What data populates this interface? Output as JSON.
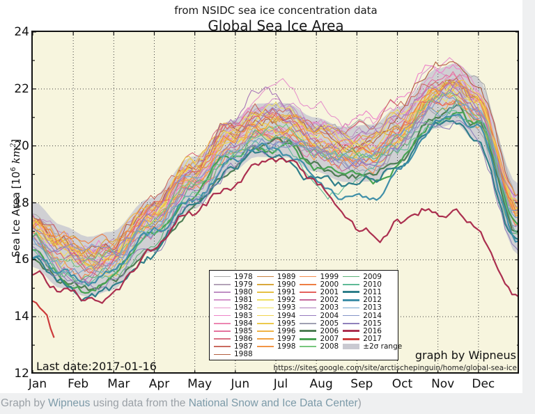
{
  "page": {
    "caption_parts": {
      "p1": "Graph by ",
      "link1": "Wipneus",
      "p2": " using data from the ",
      "link2": "National Snow and Ice Data Center",
      "p3": ")"
    }
  },
  "chart_data": {
    "type": "line",
    "title": "Global Sea Ice Area",
    "subtitle": "from NSIDC sea ice concentration data",
    "ylabel_parts": {
      "pre": "Sea Ice Area [10",
      "sup1": "6",
      "mid": " km",
      "sup2": "2",
      "post": "]"
    },
    "ylim": [
      12,
      24
    ],
    "yticks": [
      24,
      22,
      20,
      18,
      16,
      14,
      12
    ],
    "xticks": [
      "Jan",
      "Feb",
      "Mar",
      "Apr",
      "May",
      "Jun",
      "Jul",
      "Aug",
      "Sep",
      "Oct",
      "Nov",
      "Dec"
    ],
    "grid": "dotted",
    "plot_bg": "#f7f5de",
    "annotations": {
      "last_date": "Last date:2017-01-16",
      "credit": "graph by Wipneus",
      "url": "https://sites.google.com/site/arctischepinguin/home/global-sea-ice"
    },
    "legend": {
      "position": "lower-center",
      "columns": 4,
      "sigma_label": "±2σ range",
      "sigma_color": "#c9c9d1"
    },
    "climatology": [
      [
        0,
        16.9
      ],
      [
        0.06,
        16.1
      ],
      [
        0.115,
        15.75
      ],
      [
        0.16,
        15.95
      ],
      [
        0.24,
        17.2
      ],
      [
        0.33,
        18.7
      ],
      [
        0.41,
        20.0
      ],
      [
        0.46,
        20.55
      ],
      [
        0.52,
        20.55
      ],
      [
        0.58,
        20.05
      ],
      [
        0.64,
        19.7
      ],
      [
        0.7,
        19.75
      ],
      [
        0.75,
        20.35
      ],
      [
        0.83,
        21.65
      ],
      [
        0.87,
        21.85
      ],
      [
        0.91,
        21.3
      ],
      [
        1,
        17.4
      ]
    ],
    "band_halfwidth": [
      [
        0,
        1.15
      ],
      [
        0.13,
        1.05
      ],
      [
        0.25,
        0.95
      ],
      [
        0.4,
        0.9
      ],
      [
        0.5,
        0.95
      ],
      [
        0.6,
        0.95
      ],
      [
        0.7,
        1.0
      ],
      [
        0.78,
        1.0
      ],
      [
        0.85,
        1.05
      ],
      [
        0.93,
        1.15
      ],
      [
        1,
        1.25
      ]
    ],
    "series": [
      {
        "year": "1978",
        "color": "#a9a9a9",
        "w": 1.1,
        "a": 0.55
      },
      {
        "year": "1979",
        "color": "#b3a2b8",
        "w": 1.1,
        "a": 0.5
      },
      {
        "year": "1980",
        "color": "#bf8fc4",
        "w": 1.1,
        "a": 0.6
      },
      {
        "year": "1981",
        "color": "#d495cc",
        "w": 1.1,
        "a": 0.3
      },
      {
        "year": "1982",
        "color": "#e794cb",
        "w": 1.1,
        "a": 0.7
      },
      {
        "year": "1983",
        "color": "#ee82c8",
        "w": 1.1,
        "p": [
          [
            0,
            0.4
          ],
          [
            0.3,
            0.3
          ],
          [
            0.55,
            0.7
          ],
          [
            0.65,
            1.0
          ],
          [
            0.75,
            0.8
          ],
          [
            1,
            0.4
          ]
        ]
      },
      {
        "year": "1984",
        "color": "#ec86b2",
        "w": 1.1,
        "a": 0.25
      },
      {
        "year": "1985",
        "color": "#e4729e",
        "w": 1.1,
        "a": 0.3
      },
      {
        "year": "1986",
        "color": "#d96f82",
        "w": 1.1,
        "a": 0.45
      },
      {
        "year": "1987",
        "color": "#c96a5f",
        "w": 1.1,
        "a": 0.5
      },
      {
        "year": "1988",
        "color": "#b35f3f",
        "w": 1.1,
        "p": [
          [
            0,
            0.6
          ],
          [
            0.4,
            0.5
          ],
          [
            0.7,
            0.6
          ],
          [
            0.8,
            1.0
          ],
          [
            0.85,
            1.15
          ],
          [
            0.9,
            1.0
          ],
          [
            1,
            0.7
          ]
        ]
      },
      {
        "year": "1989",
        "color": "#c67f3e",
        "w": 1.1,
        "a": 0.35
      },
      {
        "year": "1990",
        "color": "#d9a83c",
        "w": 1.1,
        "a": 0.2
      },
      {
        "year": "1991",
        "color": "#e5c044",
        "w": 1.1,
        "a": 0.3
      },
      {
        "year": "1992",
        "color": "#efe061",
        "w": 1.1,
        "a": 0.45
      },
      {
        "year": "1993",
        "color": "#f2e355",
        "w": 1.1,
        "a": 0.25
      },
      {
        "year": "1994",
        "color": "#f0d44e",
        "w": 1.1,
        "a": 0.35
      },
      {
        "year": "1995",
        "color": "#ecc94d",
        "w": 1.1,
        "a": 0.05
      },
      {
        "year": "1996",
        "color": "#f0b345",
        "w": 1.1,
        "a": 0.3
      },
      {
        "year": "1997",
        "color": "#f2a13f",
        "w": 1.1,
        "a": 0.1
      },
      {
        "year": "1998",
        "color": "#f29546",
        "w": 1.1,
        "a": 0.25
      },
      {
        "year": "1999",
        "color": "#f28a4b",
        "w": 1.1,
        "a": 0.05
      },
      {
        "year": "2000",
        "color": "#ee7e43",
        "w": 1.1,
        "a": 0.15
      },
      {
        "year": "2001",
        "color": "#e4615c",
        "w": 1.1,
        "a": 0.1
      },
      {
        "year": "2002",
        "color": "#c4679b",
        "w": 1.1,
        "a": -0.05
      },
      {
        "year": "2003",
        "color": "#a877b8",
        "w": 1.1,
        "p": [
          [
            0,
            0.1
          ],
          [
            0.42,
            0.6
          ],
          [
            0.47,
            1.2
          ],
          [
            0.55,
            0.4
          ],
          [
            0.7,
            0.3
          ],
          [
            1,
            0.1
          ]
        ]
      },
      {
        "year": "2004",
        "color": "#9579bd",
        "w": 1.1,
        "a": 0.05
      },
      {
        "year": "2005",
        "color": "#9fa0b2",
        "w": 1.1,
        "a": -0.25
      },
      {
        "year": "2006",
        "color": "#4e7e54",
        "w": 2.2,
        "a": -0.7
      },
      {
        "year": "2007",
        "color": "#47a352",
        "w": 2.2,
        "p": [
          [
            0,
            -0.5
          ],
          [
            0.4,
            -0.5
          ],
          [
            0.62,
            -0.9
          ],
          [
            0.7,
            -1.1
          ],
          [
            0.8,
            -0.7
          ],
          [
            1,
            -0.5
          ]
        ]
      },
      {
        "year": "2008",
        "color": "#77c77d",
        "w": 1.1,
        "a": -0.2
      },
      {
        "year": "2009",
        "color": "#5bb276",
        "w": 1.1,
        "a": -0.2
      },
      {
        "year": "2010",
        "color": "#5fba97",
        "w": 1.1,
        "a": -0.5
      },
      {
        "year": "2011",
        "color": "#2f7f8a",
        "w": 2.2,
        "a": -0.9
      },
      {
        "year": "2012",
        "color": "#3f8fa8",
        "w": 2.2,
        "p": [
          [
            0,
            -0.7
          ],
          [
            0.4,
            -0.6
          ],
          [
            0.62,
            -1.2
          ],
          [
            0.7,
            -1.5
          ],
          [
            0.78,
            -1.2
          ],
          [
            0.9,
            -0.8
          ],
          [
            1,
            -0.9
          ]
        ]
      },
      {
        "year": "2013",
        "color": "#72a4cd",
        "w": 1.1,
        "a": -0.3
      },
      {
        "year": "2014",
        "color": "#8494c8",
        "w": 1.1,
        "a": -0.15
      },
      {
        "year": "2015",
        "color": "#8f81bb",
        "w": 1.1,
        "a": -0.5
      },
      {
        "year": "2016",
        "color": "#ab2f4f",
        "w": 2.2,
        "p": [
          [
            0,
            -1.3
          ],
          [
            0.1,
            -1.2
          ],
          [
            0.3,
            -1.0
          ],
          [
            0.45,
            -1.6
          ],
          [
            0.55,
            -1.4
          ],
          [
            0.62,
            -1.8
          ],
          [
            0.68,
            -2.8
          ],
          [
            0.72,
            -3.3
          ],
          [
            0.75,
            -2.9
          ],
          [
            0.8,
            -3.6
          ],
          [
            0.83,
            -4.2
          ],
          [
            0.87,
            -4.3
          ],
          [
            0.92,
            -4.0
          ],
          [
            1,
            -3.0
          ]
        ]
      },
      {
        "year": "2017",
        "color": "#cc3b3b",
        "w": 2.2,
        "t_end": 0.0438,
        "p": [
          [
            0,
            -2.4
          ],
          [
            0.02,
            -2.6
          ],
          [
            0.0438,
            -3.0
          ]
        ]
      }
    ]
  }
}
